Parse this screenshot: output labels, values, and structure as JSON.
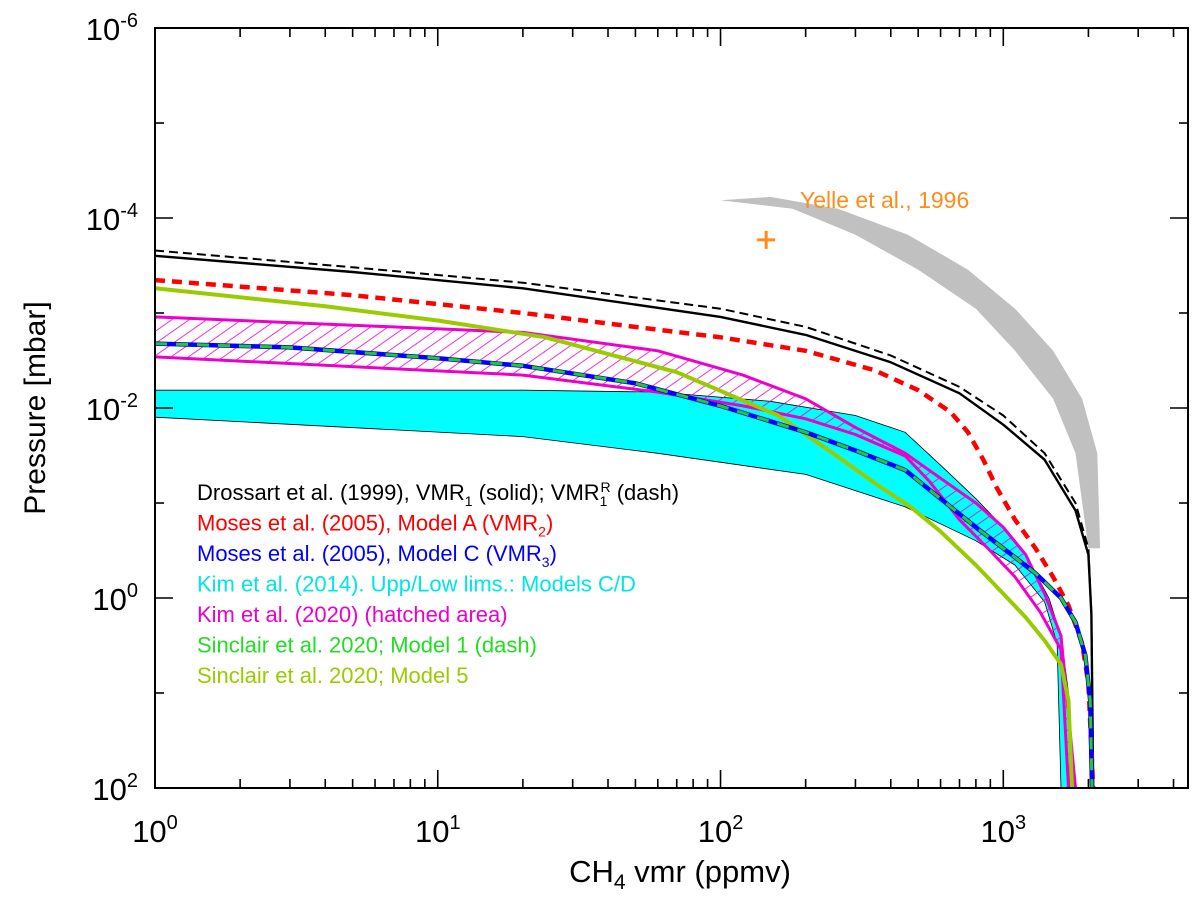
{
  "chart_data": {
    "type": "line",
    "xscale": "log",
    "yscale": "log",
    "yinverted": true,
    "xlim": [
      1,
      4500
    ],
    "ylim": [
      100,
      1e-06
    ],
    "xlabel": {
      "main": "CH",
      "sub": "4",
      "rest": " vmr (ppmv)"
    },
    "ylabel": "Pressure [mbar]",
    "xticks": [
      {
        "value": 1,
        "base": "10",
        "exp": "0"
      },
      {
        "value": 10,
        "base": "10",
        "exp": "1"
      },
      {
        "value": 100,
        "base": "10",
        "exp": "2"
      },
      {
        "value": 1000,
        "base": "10",
        "exp": "3"
      }
    ],
    "yticks": [
      {
        "value": 1e-06,
        "base": "10",
        "exp": "-6"
      },
      {
        "value": 0.0001,
        "base": "10",
        "exp": "-4"
      },
      {
        "value": 0.01,
        "base": "10",
        "exp": "-2"
      },
      {
        "value": 1,
        "base": "10",
        "exp": "0"
      },
      {
        "value": 100,
        "base": "10",
        "exp": "2"
      }
    ],
    "annotation": {
      "text": "Yelle et al., 1996",
      "color": "#ff8c1a",
      "point": {
        "x": 145,
        "y": 0.00017
      }
    },
    "bands": [
      {
        "name": "Drossart uncertainty",
        "color": "#c0c0c0",
        "upper": [
          [
            100,
            6.5e-05
          ],
          [
            180,
            8e-05
          ],
          [
            300,
            0.00015
          ],
          [
            500,
            0.00035
          ],
          [
            800,
            0.0009
          ],
          [
            1100,
            0.0025
          ],
          [
            1500,
            0.008
          ],
          [
            1800,
            0.03
          ],
          [
            2000,
            0.3
          ]
        ],
        "lower": [
          [
            2200,
            0.3
          ],
          [
            2150,
            0.03
          ],
          [
            1900,
            0.008
          ],
          [
            1500,
            0.0025
          ],
          [
            1100,
            0.0009
          ],
          [
            750,
            0.00035
          ],
          [
            460,
            0.00015
          ],
          [
            260,
            8e-05
          ],
          [
            150,
            6e-05
          ]
        ]
      }
    ],
    "series": [
      {
        "name": "Drossart dash",
        "color": "#000000",
        "width": 2,
        "dash": "9,5",
        "points": [
          [
            1,
            0.00022
          ],
          [
            5,
            0.00033
          ],
          [
            20,
            0.00048
          ],
          [
            100,
            0.0009
          ],
          [
            200,
            0.0014
          ],
          [
            400,
            0.0028
          ],
          [
            700,
            0.006
          ],
          [
            1000,
            0.012
          ],
          [
            1400,
            0.03
          ],
          [
            1800,
            0.1
          ],
          [
            2000,
            0.3
          ],
          [
            2050,
            1.5
          ],
          [
            2080,
            100
          ]
        ]
      },
      {
        "name": "Drossart solid",
        "color": "#000000",
        "width": 2.4,
        "dash": "",
        "points": [
          [
            1,
            0.00025
          ],
          [
            5,
            0.00037
          ],
          [
            20,
            0.00055
          ],
          [
            100,
            0.0011
          ],
          [
            200,
            0.0017
          ],
          [
            400,
            0.0033
          ],
          [
            700,
            0.007
          ],
          [
            1000,
            0.015
          ],
          [
            1400,
            0.035
          ],
          [
            1800,
            0.12
          ],
          [
            2000,
            0.35
          ],
          [
            2050,
            1.5
          ],
          [
            2080,
            100
          ]
        ]
      },
      {
        "name": "Moses Model A",
        "color": "#ff0000",
        "width": 4.5,
        "dash": "10,7",
        "points": [
          [
            1,
            0.00045
          ],
          [
            5,
            0.00065
          ],
          [
            20,
            0.001
          ],
          [
            60,
            0.0015
          ],
          [
            100,
            0.0018
          ],
          [
            200,
            0.0025
          ],
          [
            350,
            0.004
          ],
          [
            500,
            0.0065
          ],
          [
            650,
            0.011
          ],
          [
            750,
            0.018
          ],
          [
            850,
            0.035
          ],
          [
            950,
            0.07
          ],
          [
            1100,
            0.15
          ],
          [
            1300,
            0.3
          ],
          [
            1500,
            0.6
          ],
          [
            1700,
            1.2
          ],
          [
            1900,
            3
          ],
          [
            2000,
            8
          ],
          [
            2080,
            100
          ]
        ]
      },
      {
        "name": "Sinclair Model 5",
        "color": "#99cc00",
        "width": 4,
        "dash": "",
        "points": [
          [
            1,
            0.00055
          ],
          [
            4,
            0.00085
          ],
          [
            10,
            0.0012
          ],
          [
            24,
            0.0018
          ],
          [
            70,
            0.0042
          ],
          [
            160,
            0.012
          ],
          [
            250,
            0.03
          ],
          [
            360,
            0.065
          ],
          [
            470,
            0.11
          ],
          [
            600,
            0.2
          ],
          [
            800,
            0.45
          ],
          [
            1000,
            0.9
          ],
          [
            1200,
            1.6
          ],
          [
            1400,
            2.8
          ],
          [
            1600,
            5
          ],
          [
            1700,
            12
          ],
          [
            1750,
            100
          ]
        ]
      },
      {
        "name": "Moses Model C",
        "color": "#0000ff",
        "width": 4.5,
        "dash": "",
        "points": [
          [
            1,
            0.0021
          ],
          [
            3,
            0.0023
          ],
          [
            10,
            0.003
          ],
          [
            20,
            0.0036
          ],
          [
            50,
            0.0055
          ],
          [
            100,
            0.0095
          ],
          [
            200,
            0.018
          ],
          [
            300,
            0.028
          ],
          [
            450,
            0.045
          ],
          [
            600,
            0.09
          ],
          [
            800,
            0.18
          ],
          [
            1000,
            0.3
          ],
          [
            1300,
            0.55
          ],
          [
            1600,
            1
          ],
          [
            1800,
            1.8
          ],
          [
            1950,
            4
          ],
          [
            2030,
            12
          ],
          [
            2060,
            100
          ]
        ]
      },
      {
        "name": "Sinclair Model 1",
        "color": "#22cc22",
        "width": 3,
        "dash": "12,9",
        "points": [
          [
            1,
            0.0021
          ],
          [
            3,
            0.0023
          ],
          [
            10,
            0.003
          ],
          [
            20,
            0.0036
          ],
          [
            50,
            0.0055
          ],
          [
            100,
            0.0095
          ],
          [
            200,
            0.018
          ],
          [
            300,
            0.028
          ],
          [
            450,
            0.045
          ],
          [
            600,
            0.09
          ],
          [
            800,
            0.18
          ],
          [
            1000,
            0.3
          ],
          [
            1300,
            0.55
          ],
          [
            1600,
            1
          ],
          [
            1800,
            1.8
          ],
          [
            1950,
            4
          ],
          [
            2030,
            12
          ],
          [
            2060,
            100
          ]
        ]
      }
    ],
    "fills": [
      {
        "name": "Kim 2014 range",
        "color": "#00ffff",
        "polygon": [
          [
            1,
            0.0065
          ],
          [
            20,
            0.0065
          ],
          [
            60,
            0.0068
          ],
          [
            150,
            0.0085
          ],
          [
            300,
            0.012
          ],
          [
            450,
            0.018
          ],
          [
            600,
            0.04
          ],
          [
            800,
            0.09
          ],
          [
            1000,
            0.18
          ],
          [
            1200,
            0.35
          ],
          [
            1450,
            1
          ],
          [
            1600,
            2.5
          ],
          [
            1700,
            10
          ],
          [
            1720,
            100
          ],
          [
            1600,
            100
          ],
          [
            1550,
            3
          ],
          [
            1400,
            1.1
          ],
          [
            1100,
            0.45
          ],
          [
            800,
            0.25
          ],
          [
            450,
            0.11
          ],
          [
            200,
            0.05
          ],
          [
            60,
            0.03
          ],
          [
            20,
            0.02
          ],
          [
            1,
            0.0125
          ]
        ]
      }
    ],
    "hatched": {
      "name": "Kim 2020 hatched area",
      "color": "#ee00cc",
      "upper": [
        [
          1,
          0.0011
        ],
        [
          20,
          0.0016
        ],
        [
          60,
          0.0025
        ],
        [
          120,
          0.0045
        ],
        [
          200,
          0.008
        ],
        [
          300,
          0.016
        ],
        [
          450,
          0.03
        ],
        [
          600,
          0.055
        ],
        [
          800,
          0.1
        ],
        [
          1000,
          0.18
        ],
        [
          1200,
          0.35
        ],
        [
          1400,
          0.9
        ],
        [
          1600,
          2.5
        ],
        [
          1800,
          100
        ]
      ],
      "lower": [
        [
          1,
          0.0029
        ],
        [
          20,
          0.0045
        ],
        [
          60,
          0.0068
        ],
        [
          120,
          0.0095
        ],
        [
          200,
          0.013
        ],
        [
          300,
          0.019
        ],
        [
          450,
          0.032
        ],
        [
          550,
          0.06
        ],
        [
          700,
          0.15
        ],
        [
          900,
          0.32
        ],
        [
          1100,
          0.6
        ],
        [
          1350,
          1.4
        ],
        [
          1600,
          3.5
        ],
        [
          1700,
          100
        ]
      ]
    },
    "legend": {
      "placement": "lower-left",
      "entries": [
        {
          "color": "#000000",
          "parts": [
            {
              "t": "Drossart et al. (1999), VMR"
            },
            {
              "t": "1",
              "s": "sub"
            },
            {
              "t": " (solid); VMR"
            },
            {
              "t": "1",
              "s": "sub"
            },
            {
              "t": "R",
              "s": "sup"
            },
            {
              "t": " (dash)"
            }
          ]
        },
        {
          "color": "#ff0000",
          "parts": [
            {
              "t": "Moses et al. (2005), Model A (VMR"
            },
            {
              "t": "2",
              "s": "sub"
            },
            {
              "t": ")"
            }
          ]
        },
        {
          "color": "#0000ff",
          "parts": [
            {
              "t": "Moses et al. (2005), Model C (VMR"
            },
            {
              "t": "3",
              "s": "sub"
            },
            {
              "t": ")"
            }
          ]
        },
        {
          "color": "#00e5e5",
          "parts": [
            {
              "t": "Kim et al. (2014). Upp/Low lims.: Models C/D"
            }
          ]
        },
        {
          "color": "#ee00cc",
          "parts": [
            {
              "t": "Kim et al. (2020) (hatched area)"
            }
          ]
        },
        {
          "color": "#22dd22",
          "parts": [
            {
              "t": "Sinclair et al. 2020; Model 1 (dash)"
            }
          ]
        },
        {
          "color": "#99cc00",
          "parts": [
            {
              "t": "Sinclair et al. 2020; Model 5"
            }
          ]
        }
      ]
    }
  }
}
